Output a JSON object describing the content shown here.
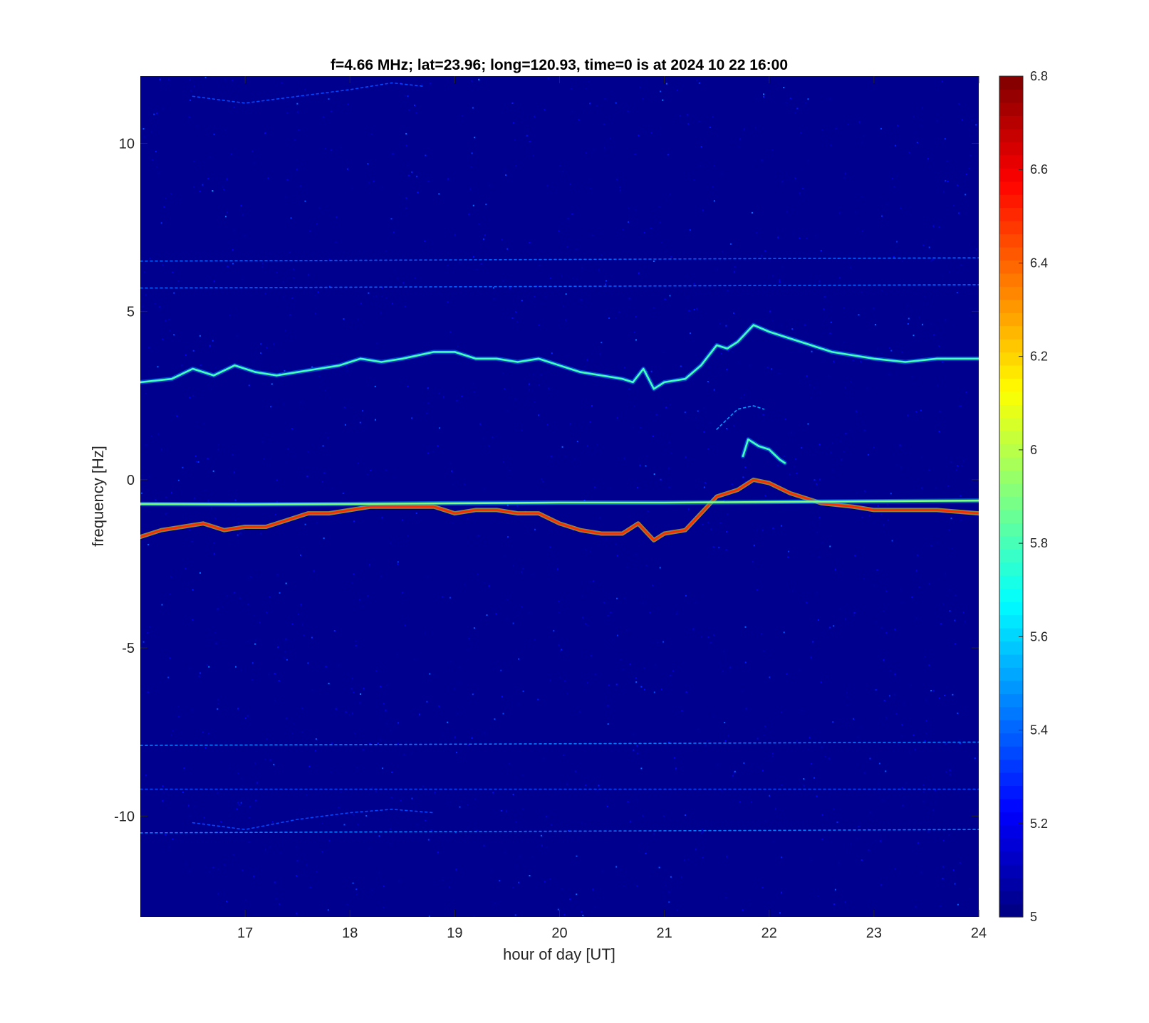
{
  "chart_data": {
    "type": "heatmap",
    "title": "f=4.66 MHz;  lat=23.96; long=120.93, time=0 is at 2024 10 22 16:00",
    "xlabel": "hour of day [UT]",
    "ylabel": "frequency [Hz]",
    "xlim": [
      16,
      24
    ],
    "ylim": [
      -13,
      12
    ],
    "x_ticks": [
      17,
      18,
      19,
      20,
      21,
      22,
      23,
      24
    ],
    "y_ticks": [
      -10,
      -5,
      0,
      5,
      10
    ],
    "colormap": "jet",
    "clim": [
      5,
      6.8
    ],
    "colorbar_ticks": [
      5,
      5.2,
      5.4,
      5.6,
      5.8,
      6,
      6.2,
      6.4,
      6.6,
      6.8
    ],
    "background_color": "#00008f",
    "traces": [
      {
        "name": "upper trace",
        "level": 5.8,
        "points": [
          [
            16.0,
            2.9
          ],
          [
            16.3,
            3.0
          ],
          [
            16.5,
            3.3
          ],
          [
            16.7,
            3.1
          ],
          [
            16.9,
            3.4
          ],
          [
            17.1,
            3.2
          ],
          [
            17.3,
            3.1
          ],
          [
            17.5,
            3.2
          ],
          [
            17.7,
            3.3
          ],
          [
            17.9,
            3.4
          ],
          [
            18.1,
            3.6
          ],
          [
            18.3,
            3.5
          ],
          [
            18.5,
            3.6
          ],
          [
            18.8,
            3.8
          ],
          [
            19.0,
            3.8
          ],
          [
            19.2,
            3.6
          ],
          [
            19.4,
            3.6
          ],
          [
            19.6,
            3.5
          ],
          [
            19.8,
            3.6
          ],
          [
            20.0,
            3.4
          ],
          [
            20.2,
            3.2
          ],
          [
            20.4,
            3.1
          ],
          [
            20.6,
            3.0
          ],
          [
            20.7,
            2.9
          ],
          [
            20.8,
            3.3
          ],
          [
            20.9,
            2.7
          ],
          [
            21.0,
            2.9
          ],
          [
            21.2,
            3.0
          ],
          [
            21.35,
            3.4
          ],
          [
            21.5,
            4.0
          ],
          [
            21.6,
            3.9
          ],
          [
            21.7,
            4.1
          ],
          [
            21.85,
            4.6
          ],
          [
            22.0,
            4.4
          ],
          [
            22.2,
            4.2
          ],
          [
            22.4,
            4.0
          ],
          [
            22.6,
            3.8
          ],
          [
            22.8,
            3.7
          ],
          [
            23.0,
            3.6
          ],
          [
            23.3,
            3.5
          ],
          [
            23.6,
            3.6
          ],
          [
            24.0,
            3.6
          ]
        ]
      },
      {
        "name": "lower trace",
        "level": 6.5,
        "points": [
          [
            16.0,
            -1.7
          ],
          [
            16.2,
            -1.5
          ],
          [
            16.4,
            -1.4
          ],
          [
            16.6,
            -1.3
          ],
          [
            16.8,
            -1.5
          ],
          [
            17.0,
            -1.4
          ],
          [
            17.2,
            -1.4
          ],
          [
            17.4,
            -1.2
          ],
          [
            17.6,
            -1.0
          ],
          [
            17.8,
            -1.0
          ],
          [
            18.0,
            -0.9
          ],
          [
            18.2,
            -0.8
          ],
          [
            18.4,
            -0.8
          ],
          [
            18.6,
            -0.8
          ],
          [
            18.8,
            -0.8
          ],
          [
            19.0,
            -1.0
          ],
          [
            19.2,
            -0.9
          ],
          [
            19.4,
            -0.9
          ],
          [
            19.6,
            -1.0
          ],
          [
            19.8,
            -1.0
          ],
          [
            20.0,
            -1.3
          ],
          [
            20.2,
            -1.5
          ],
          [
            20.4,
            -1.6
          ],
          [
            20.6,
            -1.6
          ],
          [
            20.75,
            -1.3
          ],
          [
            20.9,
            -1.8
          ],
          [
            21.0,
            -1.6
          ],
          [
            21.2,
            -1.5
          ],
          [
            21.35,
            -1.0
          ],
          [
            21.5,
            -0.5
          ],
          [
            21.7,
            -0.3
          ],
          [
            21.85,
            0.0
          ],
          [
            22.0,
            -0.1
          ],
          [
            22.2,
            -0.4
          ],
          [
            22.5,
            -0.7
          ],
          [
            22.8,
            -0.8
          ],
          [
            23.0,
            -0.9
          ],
          [
            23.3,
            -0.9
          ],
          [
            23.6,
            -0.9
          ],
          [
            24.0,
            -1.0
          ]
        ]
      },
      {
        "name": "short trace",
        "level": 5.8,
        "points": [
          [
            21.75,
            0.7
          ],
          [
            21.8,
            1.2
          ],
          [
            21.9,
            1.0
          ],
          [
            22.0,
            0.9
          ],
          [
            22.1,
            0.6
          ],
          [
            22.15,
            0.5
          ]
        ]
      },
      {
        "name": "faint trace",
        "level": 5.5,
        "points": [
          [
            21.5,
            1.5
          ],
          [
            21.6,
            1.8
          ],
          [
            21.7,
            2.1
          ],
          [
            21.85,
            2.2
          ],
          [
            21.95,
            2.1
          ]
        ]
      },
      {
        "name": "horizontal line",
        "level": 5.9,
        "points": [
          [
            16.0,
            -0.72
          ],
          [
            17.0,
            -0.73
          ],
          [
            18.0,
            -0.72
          ],
          [
            19.0,
            -0.7
          ],
          [
            20.0,
            -0.68
          ],
          [
            21.0,
            -0.68
          ],
          [
            22.0,
            -0.66
          ],
          [
            23.0,
            -0.64
          ],
          [
            24.0,
            -0.62
          ]
        ]
      },
      {
        "name": "faint line 1",
        "level": 5.4,
        "points": [
          [
            16.0,
            6.5
          ],
          [
            24.0,
            6.6
          ]
        ]
      },
      {
        "name": "faint line 2",
        "level": 5.4,
        "points": [
          [
            16.0,
            5.7
          ],
          [
            24.0,
            5.8
          ]
        ]
      },
      {
        "name": "faint line 3",
        "level": 5.45,
        "points": [
          [
            16.0,
            -7.9
          ],
          [
            24.0,
            -7.8
          ]
        ]
      },
      {
        "name": "faint line 4",
        "level": 5.35,
        "points": [
          [
            16.0,
            -9.2
          ],
          [
            24.0,
            -9.2
          ]
        ]
      },
      {
        "name": "faint line 5",
        "level": 5.45,
        "points": [
          [
            16.0,
            -10.5
          ],
          [
            24.0,
            -10.4
          ]
        ]
      },
      {
        "name": "faint arc top",
        "level": 5.35,
        "points": [
          [
            16.5,
            11.4
          ],
          [
            17.0,
            11.2
          ],
          [
            17.5,
            11.4
          ],
          [
            18.0,
            11.6
          ],
          [
            18.4,
            11.8
          ],
          [
            18.7,
            11.7
          ]
        ]
      },
      {
        "name": "faint arc bottom",
        "level": 5.35,
        "points": [
          [
            16.5,
            -10.2
          ],
          [
            17.0,
            -10.4
          ],
          [
            17.5,
            -10.1
          ],
          [
            18.0,
            -9.9
          ],
          [
            18.4,
            -9.8
          ],
          [
            18.8,
            -9.9
          ]
        ]
      }
    ]
  }
}
